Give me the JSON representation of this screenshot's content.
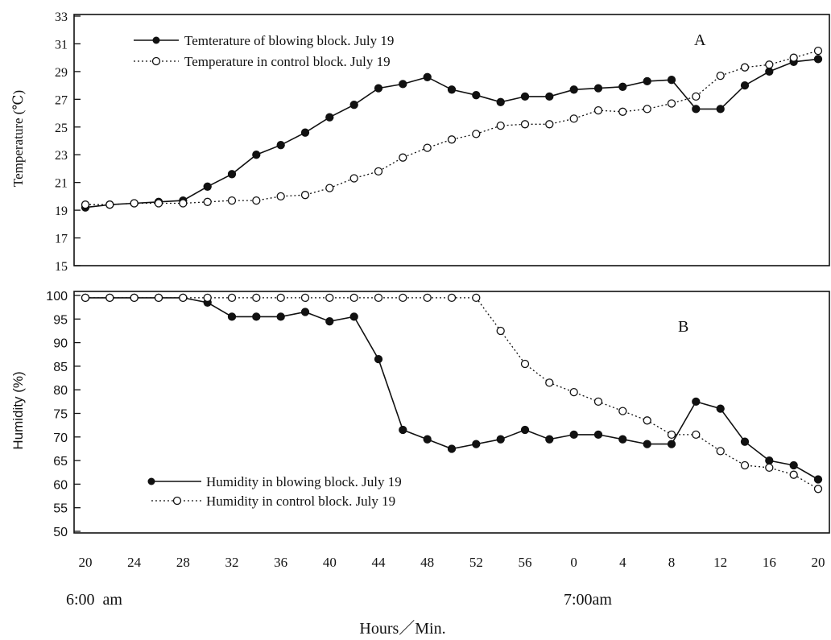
{
  "chart_data": [
    {
      "type": "line",
      "panel_label": "A",
      "ylabel": "Temperature (℃)",
      "ylim": [
        15,
        33
      ],
      "yticks": [
        "15",
        "17",
        "19",
        "21",
        "23",
        "25",
        "27",
        "29",
        "31",
        "33"
      ],
      "grid": false,
      "legend_position": "top-left",
      "x": [
        "6:20",
        "6:22",
        "6:24",
        "6:26",
        "6:28",
        "6:30",
        "6:32",
        "6:34",
        "6:36",
        "6:38",
        "6:40",
        "6:42",
        "6:44",
        "6:46",
        "6:48",
        "6:50",
        "6:52",
        "6:54",
        "6:56",
        "6:58",
        "7:00",
        "7:02",
        "7:04",
        "7:06",
        "7:08",
        "7:10",
        "7:12",
        "7:14",
        "7:16",
        "7:18",
        "7:20"
      ],
      "series": [
        {
          "name": "Temterature of blowing block. July 19",
          "style": "solid",
          "marker": "filled-circle",
          "values": [
            19.2,
            19.4,
            19.5,
            19.6,
            19.7,
            20.7,
            21.6,
            23.0,
            23.7,
            24.6,
            25.7,
            26.6,
            27.8,
            28.1,
            28.6,
            27.7,
            27.3,
            26.8,
            27.2,
            27.2,
            27.7,
            27.8,
            27.9,
            28.3,
            28.4,
            26.3,
            26.3,
            28.0,
            29.0,
            29.7,
            29.9
          ]
        },
        {
          "name": "Temperature in control block. July 19",
          "style": "dotted",
          "marker": "open-circle",
          "values": [
            19.4,
            19.4,
            19.5,
            19.5,
            19.5,
            19.6,
            19.7,
            19.7,
            20.0,
            20.1,
            20.6,
            21.3,
            21.8,
            22.8,
            23.5,
            24.1,
            24.5,
            25.1,
            25.2,
            25.2,
            25.6,
            26.2,
            26.1,
            26.3,
            26.7,
            27.2,
            28.7,
            29.3,
            29.5,
            30.0,
            30.5
          ]
        }
      ]
    },
    {
      "type": "line",
      "panel_label": "B",
      "ylabel": "Humidity (%)",
      "ylim": [
        50,
        100
      ],
      "yticks": [
        "50",
        "55",
        "60",
        "65",
        "70",
        "75",
        "80",
        "85",
        "90",
        "95",
        "100"
      ],
      "grid": false,
      "legend_position": "bottom-left",
      "x": [
        "6:20",
        "6:22",
        "6:24",
        "6:26",
        "6:28",
        "6:30",
        "6:32",
        "6:34",
        "6:36",
        "6:38",
        "6:40",
        "6:42",
        "6:44",
        "6:46",
        "6:48",
        "6:50",
        "6:52",
        "6:54",
        "6:56",
        "6:58",
        "7:00",
        "7:02",
        "7:04",
        "7:06",
        "7:08",
        "7:10",
        "7:12",
        "7:14",
        "7:16",
        "7:18",
        "7:20"
      ],
      "series": [
        {
          "name": "Humidity in blowing block. July 19",
          "style": "solid",
          "marker": "filled-circle",
          "values": [
            99.5,
            99.5,
            99.5,
            99.5,
            99.5,
            98.5,
            95.5,
            95.5,
            95.5,
            96.5,
            94.5,
            95.5,
            86.5,
            71.5,
            69.5,
            67.5,
            68.5,
            69.5,
            71.5,
            69.5,
            70.5,
            70.5,
            69.5,
            68.5,
            68.5,
            77.5,
            76,
            69,
            65,
            64,
            61
          ]
        },
        {
          "name": "Humidity in control block. July 19",
          "style": "dotted",
          "marker": "open-circle",
          "values": [
            99.5,
            99.5,
            99.5,
            99.5,
            99.5,
            99.5,
            99.5,
            99.5,
            99.5,
            99.5,
            99.5,
            99.5,
            99.5,
            99.5,
            99.5,
            99.5,
            99.5,
            92.5,
            85.5,
            81.5,
            79.5,
            77.5,
            75.5,
            73.5,
            70.5,
            70.5,
            67,
            64,
            63.5,
            62,
            59
          ]
        }
      ]
    }
  ],
  "x_axis": {
    "tick_labels": [
      "20",
      "24",
      "28",
      "32",
      "36",
      "40",
      "44",
      "48",
      "52",
      "56",
      "0",
      "4",
      "8",
      "12",
      "16",
      "20"
    ],
    "hour_labels": [
      "6:00  am",
      "7:00am"
    ],
    "xlabel": "Hours／Min."
  },
  "colors": {
    "line": "#111111",
    "marker_fill": "#111111",
    "open_marker_fill": "#ffffff",
    "background": "#ffffff"
  }
}
